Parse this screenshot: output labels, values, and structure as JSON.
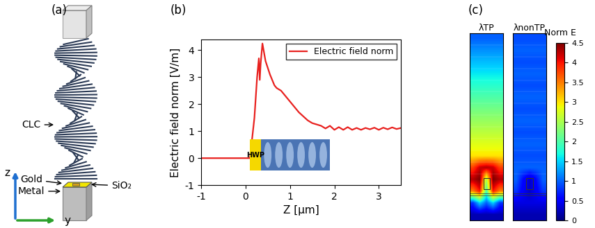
{
  "panel_a": {
    "label": "(a)",
    "texts": {
      "clc": "CLC",
      "gold": "Gold",
      "metal": "Metal",
      "sio2": "SiO₂",
      "z": "z",
      "y": "y"
    }
  },
  "chart_data": {
    "type": "line",
    "title": "(b)",
    "x_label": "Z [μm]",
    "y_label": "Electric field norm [V/m]",
    "x": [
      -1,
      0.1,
      0.2,
      0.26,
      0.3,
      0.32,
      0.34,
      0.38,
      0.45,
      0.55,
      0.65,
      0.7,
      0.8,
      0.9,
      1.0,
      1.1,
      1.2,
      1.3,
      1.4,
      1.5,
      1.6,
      1.7,
      1.8,
      1.9,
      2.0,
      2.1,
      2.2,
      2.3,
      2.4,
      2.5,
      2.6,
      2.7,
      2.8,
      2.9,
      3.0,
      3.1,
      3.2,
      3.3,
      3.4,
      3.5
    ],
    "series": [
      {
        "name": "Electric field norm",
        "color": "#e8201e",
        "values": [
          0,
          0,
          1.5,
          3.0,
          3.7,
          2.9,
          3.5,
          4.25,
          3.6,
          3.1,
          2.7,
          2.6,
          2.5,
          2.3,
          2.1,
          1.9,
          1.7,
          1.55,
          1.4,
          1.3,
          1.25,
          1.2,
          1.1,
          1.2,
          1.05,
          1.15,
          1.05,
          1.15,
          1.05,
          1.12,
          1.05,
          1.12,
          1.07,
          1.13,
          1.05,
          1.13,
          1.07,
          1.14,
          1.08,
          1.12
        ]
      }
    ],
    "xlim": [
      -1,
      3.5
    ],
    "xticks": [
      -1,
      0,
      1,
      2,
      3
    ],
    "ylim": [
      -1,
      4.4
    ],
    "yticks": [
      -1,
      0,
      1,
      2,
      3,
      4
    ],
    "legend": "upper right",
    "grid": false,
    "annotations": [
      "HWP"
    ]
  },
  "panel_c": {
    "label": "(c)",
    "maps": [
      {
        "title": "λTP",
        "cells": [
          [
            1.0,
            1.0,
            1.0,
            1.0,
            1.0
          ],
          [
            1.2,
            1.2,
            1.2,
            1.2,
            1.2
          ],
          [
            1.4,
            1.4,
            1.4,
            1.4,
            1.4
          ],
          [
            1.6,
            1.6,
            1.6,
            1.6,
            1.6
          ],
          [
            1.8,
            1.8,
            1.8,
            1.8,
            1.8
          ],
          [
            2.0,
            2.0,
            2.0,
            2.0,
            2.0
          ],
          [
            2.2,
            2.2,
            2.2,
            2.2,
            2.2
          ],
          [
            2.4,
            2.4,
            2.4,
            2.4,
            2.4
          ],
          [
            2.6,
            2.6,
            2.6,
            2.6,
            2.6
          ],
          [
            2.8,
            2.8,
            2.8,
            2.8,
            2.8
          ],
          [
            3.0,
            3.0,
            3.0,
            3.0,
            3.0
          ],
          [
            3.8,
            4.2,
            4.3,
            4.2,
            3.8
          ],
          [
            4.3,
            4.5,
            2.5,
            4.5,
            4.3
          ],
          [
            3.5,
            4.0,
            2.0,
            4.0,
            3.5
          ],
          [
            0.8,
            1.5,
            1.0,
            1.5,
            0.8
          ],
          [
            0.2,
            0.2,
            0.2,
            0.2,
            0.2
          ]
        ]
      },
      {
        "title": "λnonTP",
        "cells": [
          [
            0.9,
            0.9,
            0.9,
            0.9,
            0.9
          ],
          [
            1.0,
            1.0,
            1.0,
            1.0,
            1.0
          ],
          [
            0.9,
            0.9,
            0.9,
            0.9,
            0.9
          ],
          [
            1.0,
            1.0,
            1.0,
            1.0,
            1.0
          ],
          [
            0.9,
            0.9,
            0.9,
            0.9,
            0.9
          ],
          [
            1.0,
            1.0,
            1.0,
            1.0,
            1.0
          ],
          [
            0.9,
            0.9,
            0.9,
            0.9,
            0.9
          ],
          [
            1.0,
            1.0,
            1.0,
            1.0,
            1.0
          ],
          [
            0.9,
            0.9,
            0.9,
            0.9,
            0.9
          ],
          [
            1.0,
            1.0,
            1.0,
            1.0,
            1.0
          ],
          [
            0.9,
            0.9,
            0.9,
            0.9,
            0.9
          ],
          [
            1.0,
            1.0,
            1.0,
            1.0,
            1.0
          ],
          [
            1.0,
            0.6,
            0.3,
            0.6,
            1.0
          ],
          [
            0.8,
            0.5,
            0.3,
            0.5,
            0.8
          ],
          [
            0.4,
            0.4,
            0.4,
            0.4,
            0.4
          ],
          [
            0.2,
            0.2,
            0.2,
            0.2,
            0.2
          ]
        ]
      }
    ],
    "colorbar": {
      "label": "Norm E",
      "range": [
        0,
        4.5
      ],
      "ticks": [
        0,
        0.5,
        1,
        1.5,
        2,
        2.5,
        3,
        3.5,
        4,
        4.5
      ]
    }
  }
}
